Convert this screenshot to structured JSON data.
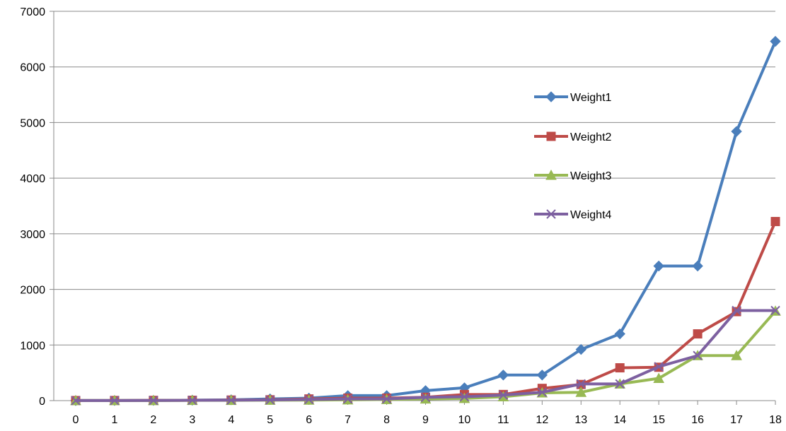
{
  "chart_data": {
    "type": "line",
    "title": "",
    "xlabel": "",
    "ylabel": "",
    "x": [
      0,
      1,
      2,
      3,
      4,
      5,
      6,
      7,
      8,
      9,
      10,
      11,
      12,
      13,
      14,
      15,
      16,
      17,
      18
    ],
    "x_tick_labels": [
      "0",
      "1",
      "2",
      "3",
      "4",
      "5",
      "6",
      "7",
      "8",
      "9",
      "10",
      "11",
      "12",
      "13",
      "14",
      "15",
      "16",
      "17",
      "18"
    ],
    "ylim": [
      0,
      7000
    ],
    "y_ticks": [
      0,
      1000,
      2000,
      3000,
      4000,
      5000,
      6000,
      7000
    ],
    "y_tick_labels": [
      "0",
      "1000",
      "2000",
      "3000",
      "4000",
      "5000",
      "6000",
      "7000"
    ],
    "grid": "horizontal",
    "legend_position": "right",
    "series": [
      {
        "name": "Weight1",
        "color": "#4a7ebb",
        "marker": "diamond",
        "values": [
          1,
          2,
          4,
          8,
          15,
          30,
          45,
          90,
          90,
          180,
          230,
          460,
          460,
          920,
          1200,
          2420,
          2420,
          4840,
          6460
        ]
      },
      {
        "name": "Weight2",
        "color": "#be4b48",
        "marker": "square",
        "values": [
          1,
          2,
          4,
          6,
          10,
          15,
          30,
          45,
          45,
          60,
          110,
          110,
          220,
          290,
          590,
          600,
          1200,
          1600,
          3220
        ]
      },
      {
        "name": "Weight3",
        "color": "#98b954",
        "marker": "triangle",
        "values": [
          1,
          1,
          2,
          4,
          5,
          8,
          10,
          15,
          20,
          30,
          40,
          70,
          140,
          150,
          300,
          400,
          810,
          810,
          1610
        ]
      },
      {
        "name": "Weight4",
        "color": "#7d60a0",
        "marker": "x",
        "values": [
          1,
          2,
          3,
          6,
          8,
          12,
          20,
          30,
          30,
          60,
          70,
          100,
          150,
          300,
          300,
          610,
          810,
          1620,
          1620
        ]
      }
    ]
  }
}
